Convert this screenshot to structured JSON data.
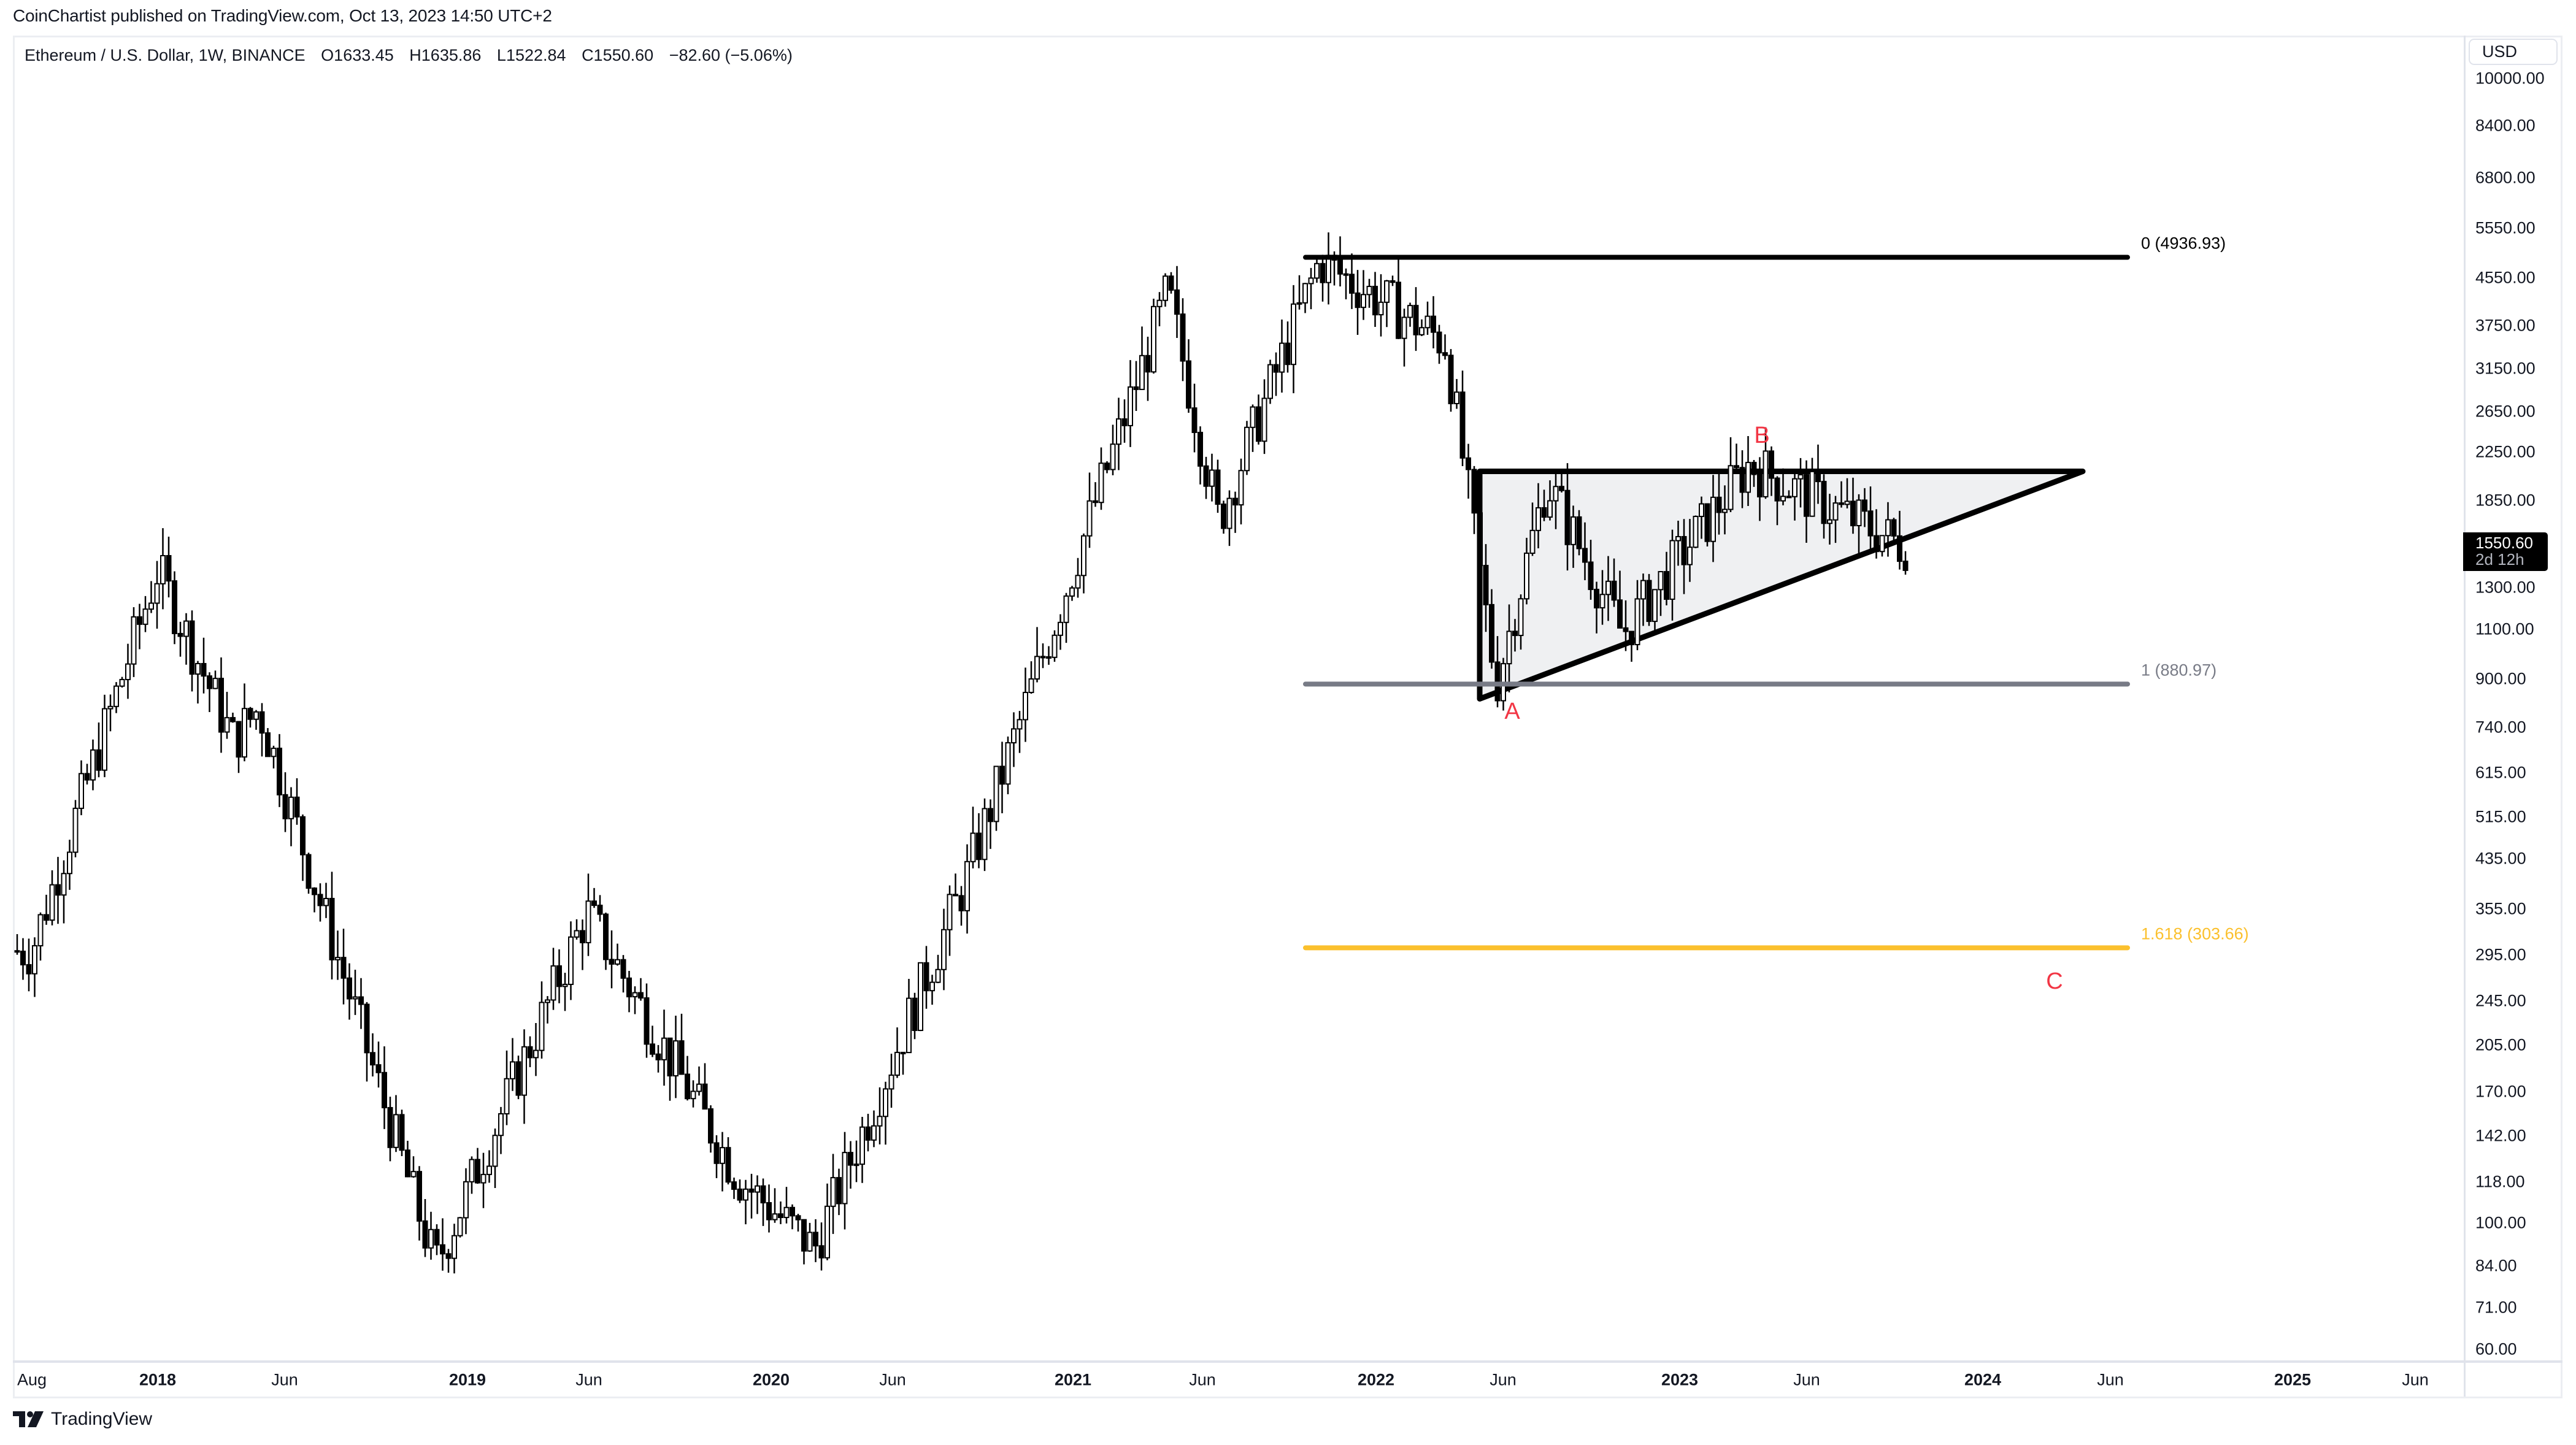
{
  "header": {
    "published": "CoinChartist published on TradingView.com, Oct 13, 2023 14:50 UTC+2"
  },
  "legend": {
    "symbol": "Ethereum / U.S. Dollar, 1W, BINANCE",
    "open": "O1633.45",
    "high": "H1635.86",
    "low": "L1522.84",
    "close": "C1550.60",
    "change": "−82.60 (−5.06%)"
  },
  "price_axis": {
    "currency": "USD",
    "ticks": [
      "10000.00",
      "8400.00",
      "6800.00",
      "5550.00",
      "4550.00",
      "3750.00",
      "3150.00",
      "2650.00",
      "2250.00",
      "1850.00",
      "1300.00",
      "1100.00",
      "900.00",
      "740.00",
      "615.00",
      "515.00",
      "435.00",
      "355.00",
      "295.00",
      "245.00",
      "205.00",
      "170.00",
      "142.00",
      "118.00",
      "100.00",
      "84.00",
      "71.00",
      "60.00"
    ],
    "current_price": "1550.60",
    "countdown": "2d 12h"
  },
  "time_axis": {
    "ticks": [
      {
        "label": "Aug",
        "year": false
      },
      {
        "label": "2018",
        "year": true
      },
      {
        "label": "Jun",
        "year": false
      },
      {
        "label": "2019",
        "year": true
      },
      {
        "label": "Jun",
        "year": false
      },
      {
        "label": "2020",
        "year": true
      },
      {
        "label": "Jun",
        "year": false
      },
      {
        "label": "2021",
        "year": true
      },
      {
        "label": "Jun",
        "year": false
      },
      {
        "label": "2022",
        "year": true
      },
      {
        "label": "Jun",
        "year": false
      },
      {
        "label": "2023",
        "year": true
      },
      {
        "label": "Jun",
        "year": false
      },
      {
        "label": "2024",
        "year": true
      },
      {
        "label": "Jun",
        "year": false
      },
      {
        "label": "2025",
        "year": true
      },
      {
        "label": "Jun",
        "year": false
      }
    ]
  },
  "annotations": {
    "fib_0": "0 (4936.93)",
    "fib_1": "1 (880.97)",
    "fib_1618": "1.618 (303.66)",
    "wave_a": "A",
    "wave_b": "B",
    "wave_c": "C"
  },
  "colors": {
    "up_fill": "#ffffff",
    "candle_stroke": "#000000",
    "down_fill": "#000000",
    "fib_0": "#000000",
    "fib_1": "#787b86",
    "fib_1618": "#fbc02d",
    "wave_label": "#f23645",
    "triangle_fill": "#eff0f2"
  },
  "footer": {
    "brand": "TradingView"
  },
  "chart_data": {
    "type": "candlestick",
    "title": "Ethereum / U.S. Dollar, 1W, BINANCE",
    "xlabel": "",
    "ylabel": "USD",
    "yscale": "log",
    "ylim": [
      60,
      10000
    ],
    "x_range": [
      "2017-08",
      "2025-09"
    ],
    "last_bar": {
      "open": 1633.45,
      "high": 1635.86,
      "low": 1522.84,
      "close": 1550.6,
      "change": -82.6,
      "change_pct": -5.06
    },
    "key_points": [
      {
        "date": "2017-08",
        "price": 300
      },
      {
        "date": "2018-01",
        "price": 1400
      },
      {
        "date": "2018-04",
        "price": 700
      },
      {
        "date": "2018-05",
        "price": 800
      },
      {
        "date": "2018-12",
        "price": 84
      },
      {
        "date": "2019-06",
        "price": 350
      },
      {
        "date": "2019-12",
        "price": 120
      },
      {
        "date": "2020-03",
        "price": 90
      },
      {
        "date": "2020-09",
        "price": 400
      },
      {
        "date": "2021-05",
        "price": 4300
      },
      {
        "date": "2021-07",
        "price": 1700
      },
      {
        "date": "2021-11",
        "price": 4868
      },
      {
        "date": "2022-04",
        "price": 3500
      },
      {
        "date": "2022-06",
        "price": 880
      },
      {
        "date": "2022-08",
        "price": 2000
      },
      {
        "date": "2022-11",
        "price": 1080
      },
      {
        "date": "2023-04",
        "price": 2140
      },
      {
        "date": "2023-10",
        "price": 1550
      }
    ],
    "drawings": [
      {
        "type": "fib_level",
        "level": 0,
        "price": 4936.93,
        "label": "0 (4936.93)"
      },
      {
        "type": "fib_level",
        "level": 1,
        "price": 880.97,
        "label": "1 (880.97)"
      },
      {
        "type": "fib_level",
        "level": 1.618,
        "price": 303.66,
        "label": "1.618 (303.66)"
      },
      {
        "type": "triangle",
        "kind": "ascending",
        "top_price": 2080,
        "base_start_price": 830,
        "apex_date": "2024-05"
      },
      {
        "type": "label",
        "text": "A",
        "date": "2022-06",
        "price": 760
      },
      {
        "type": "label",
        "text": "B",
        "date": "2023-04",
        "price": 2350
      },
      {
        "type": "label",
        "text": "C",
        "date": "2024-04",
        "price": 270
      }
    ]
  }
}
